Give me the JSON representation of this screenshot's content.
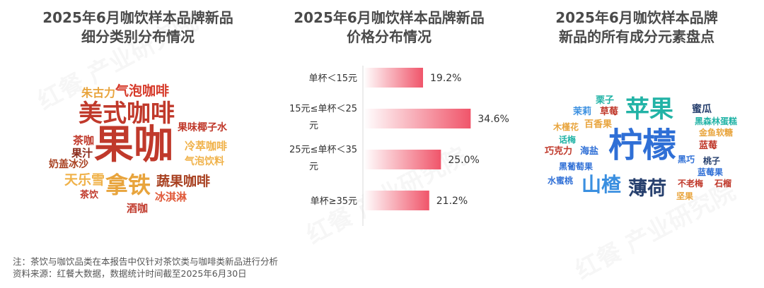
{
  "panels": {
    "left_title_1": "2025年6月咖饮样本品牌新品",
    "left_title_2": "细分类别分布情况",
    "mid_title_1": "2025年6月咖饮样本品牌新品",
    "mid_title_2": "价格分布情况",
    "right_title_1": "2025年6月咖饮样本品牌",
    "right_title_2": "新品的所有成分元素盘点"
  },
  "category_cloud": [
    {
      "text": "果咖",
      "color": "#c0392b"
    },
    {
      "text": "美式咖啡",
      "color": "#c0392b"
    },
    {
      "text": "拿铁",
      "color": "#e8a43c"
    },
    {
      "text": "蔬果咖啡",
      "color": "#a84020"
    },
    {
      "text": "天乐雪",
      "color": "#f0b24a"
    },
    {
      "text": "气泡咖啡",
      "color": "#d63a2a"
    },
    {
      "text": "朱古力",
      "color": "#e8a43c"
    },
    {
      "text": "果味椰子水",
      "color": "#c0392b"
    },
    {
      "text": "冷萃咖啡",
      "color": "#f0b24a"
    },
    {
      "text": "气泡饮料",
      "color": "#f0b24a"
    },
    {
      "text": "茶咖",
      "color": "#c0392b"
    },
    {
      "text": "果汁",
      "color": "#8a2a1a"
    },
    {
      "text": "奶盖冰沙",
      "color": "#a84020"
    },
    {
      "text": "茶饮",
      "color": "#c0392b"
    },
    {
      "text": "冰淇淋",
      "color": "#e05a3a"
    },
    {
      "text": "酒咖",
      "color": "#c0392b"
    }
  ],
  "chart_data": {
    "type": "bar",
    "orientation": "horizontal",
    "categories": [
      "单杯＜15元",
      "15元≤单杯＜25元",
      "25元≤单杯＜35元",
      "单杯≥35元"
    ],
    "values": [
      19.2,
      34.6,
      25.0,
      21.2
    ],
    "value_labels": [
      "19.2%",
      "34.6%",
      "25.0%",
      "21.2%"
    ],
    "unit": "%",
    "bar_color": "#f0556a",
    "xlim": [
      0,
      40
    ]
  },
  "ingredient_cloud": [
    {
      "text": "柠檬",
      "color": "#2f6fd6"
    },
    {
      "text": "苹果",
      "color": "#22b3a6"
    },
    {
      "text": "山楂",
      "color": "#3a8fe0"
    },
    {
      "text": "薄荷",
      "color": "#27406e"
    },
    {
      "text": "栗子",
      "color": "#22b3a6"
    },
    {
      "text": "蜜瓜",
      "color": "#27406e"
    },
    {
      "text": "茉莉",
      "color": "#3a8fe0"
    },
    {
      "text": "草莓",
      "color": "#c0392b"
    },
    {
      "text": "黑森林蛋糕",
      "color": "#22b3a6"
    },
    {
      "text": "木槿花",
      "color": "#e8a43c"
    },
    {
      "text": "百香果",
      "color": "#e8a43c"
    },
    {
      "text": "金鱼软糖",
      "color": "#e8a43c"
    },
    {
      "text": "话梅",
      "color": "#22b3a6"
    },
    {
      "text": "蓝莓",
      "color": "#c0392b"
    },
    {
      "text": "巧克力",
      "color": "#c0392b"
    },
    {
      "text": "海盐",
      "color": "#2f6fd6"
    },
    {
      "text": "黑巧",
      "color": "#2f6fd6"
    },
    {
      "text": "桃子",
      "color": "#27406e"
    },
    {
      "text": "黑葡萄果",
      "color": "#2f6fd6"
    },
    {
      "text": "蓝莓果",
      "color": "#2f6fd6"
    },
    {
      "text": "水蜜桃",
      "color": "#2f6fd6"
    },
    {
      "text": "不老梅",
      "color": "#c0392b"
    },
    {
      "text": "石榴",
      "color": "#c0392b"
    },
    {
      "text": "坚果",
      "color": "#e8a43c"
    }
  ],
  "notes": {
    "line1": "注：茶饮与咖饮品类在本报告中仅针对茶饮类与咖啡类新品进行分析",
    "line2": "资料来源：红餐大数据，数据统计时间截至2025年6月30日"
  },
  "watermark": "红餐 产业研究院"
}
